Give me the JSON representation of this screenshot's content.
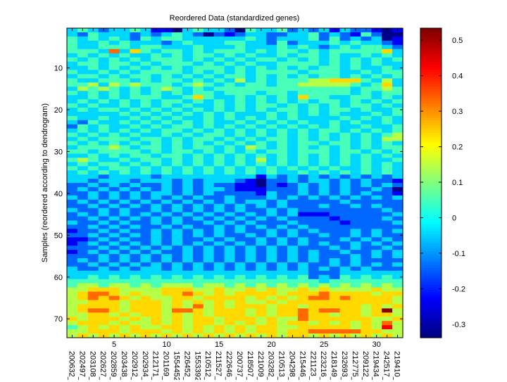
{
  "chart_data": {
    "type": "heatmap",
    "title": "Reordered Data (standardized genes)",
    "xlabel": "",
    "ylabel": "Samples (reordered according to dendrogram)",
    "x_tick_major": [
      5,
      10,
      15,
      20,
      25,
      30
    ],
    "y_tick_major": [
      10,
      20,
      30,
      40,
      50,
      60,
      70
    ],
    "column_labels": [
      "200632_",
      "202497_",
      "203108_",
      "202627_",
      "202859_",
      "203438_",
      "202912_",
      "202934_",
      "212171_",
      "201169_",
      "1554452",
      "226452_",
      "1553392",
      "210512_",
      "211527_",
      "222646_",
      "200737_",
      "218507_",
      "221009_",
      "203282_",
      "210513_",
      "204298_",
      "215446_",
      "221123_",
      "223216_",
      "218149_",
      "232693_",
      "212775_",
      "209122_",
      "219434_",
      "242517_",
      "219410_"
    ],
    "n_rows": 74,
    "value_encoding": "each digit d maps to value -0.33 + d*0.095",
    "rows": [
      "34323343110343320433423231322101",
      "32433323234320212332233423214200",
      "43434324344333333432333424232301",
      "43343433323433344332423334343321",
      "43344434433343334333434323434432",
      "44437364344343444343443434444463",
      "34343433434344343433434434334343",
      "43434343444343434344343434343434",
      "34434434344434343433444434343433",
      "33434343434344434343434344343343",
      "43343434444343434344443444334344",
      "34434344343434344343434344343434",
      "43344434344343435343444556664353",
      "44535454443454343443445555543463",
      "35454343454343444444444444434454",
      "43434343434344344434434444434344",
      "33434344433464334343436443344343",
      "34343434344343434343434344343434",
      "43433434343433434344343434344343",
      "34344343434343434343443434434334",
      "33333434343434343334343434333434",
      "43343343434334343434343333434343",
      "32433434343434334343434334343343",
      "24343343434434343434343434334334",
      "34343434344343434343434344343434",
      "43434343343434434343434343434345",
      "34344434434344343434434343434355",
      "43434343434343434343434434434343",
      "34445434434344343543434343434344",
      "44344443434434343434434443443434",
      "33434344344343434343434343434343",
      "45433434434343434353434343434334",
      "34344343434343434343434343434343",
      "43434434343434343434343434334343",
      "34343434343434343434334343434343",
      "33323333233333333313232323232323",
      "33233323332323332102232332323221",
      "22323232232323221102123232323232",
      "23232323232323321112223232322320",
      "22323232332323222213223232323221",
      "32323232323232232223232323232323",
      "23232323232323232332322222322222",
      "22323232323232323232322232232322",
      "32232322323232323223232222222232",
      "23232323232323232323231112222223",
      "22323232323232323232322221222232",
      "32232322323223232322232222122223",
      "22323232232322323232323222222222",
      "12232322323232323223232322232323",
      "22323232323232322323232232232322",
      "11232322323223232232323222323232",
      "12323232323232323232323232232323",
      "22232323232323232323232223232232",
      "12323232322323232323232322322323",
      "22232323232323232323232322232323",
      "23232323232323232323232323232222",
      "22323232323232323232323223232323",
      "32232323323232323232323232323222",
      "33333333333333333333333222333333",
      "33434343434343434343434232434343",
      "44444444444444444444444434444444",
      "45545545455545545454545454545454",
      "55666555566655655656556565555655",
      "56776565566765656666566676666566",
      "56767656556656666565656776766665",
      "55666566656565656556566666666665",
      "56666566656575656665665666665656",
      "56776566657765666565667677665695",
      "55665656656565666565667665665665",
      "65666565656566566656557666666556",
      "56665655656566565656566565656575",
      "45656565566565656566556666656585",
      "55666566656565656566566777776655",
      "56565656565656565656566565656565"
    ],
    "colorbar": {
      "min": -0.338,
      "max": 0.534,
      "ticks": [
        -0.3,
        -0.2,
        -0.1,
        0,
        0.1,
        0.2,
        0.3,
        0.4,
        0.5
      ],
      "tick_labels": [
        "-0.3",
        "-0.2",
        "-0.1",
        "0",
        "0.1",
        "0.2",
        "0.3",
        "0.4",
        "0.5"
      ]
    }
  }
}
